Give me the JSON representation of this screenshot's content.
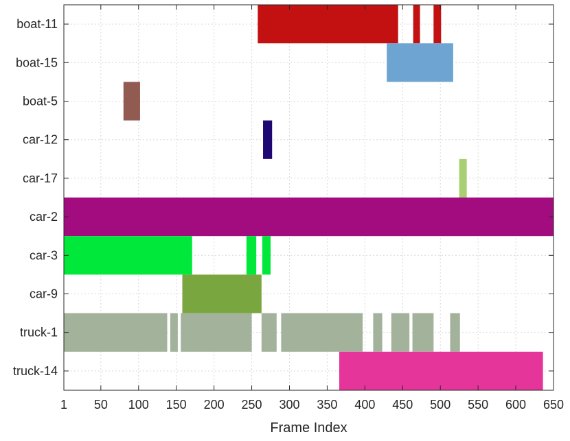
{
  "chart_data": {
    "type": "bar",
    "orientation": "horizontal-timeline",
    "xlabel": "Frame Index",
    "ylabel": "",
    "title": "",
    "xlim": [
      1,
      650
    ],
    "x_ticks": [
      "1",
      "50",
      "100",
      "150",
      "200",
      "250",
      "300",
      "350",
      "400",
      "450",
      "500",
      "550",
      "600",
      "650"
    ],
    "grid": true,
    "categories": [
      "boat-11",
      "boat-15",
      "boat-5",
      "car-12",
      "car-17",
      "car-2",
      "car-3",
      "car-9",
      "truck-1",
      "truck-14"
    ],
    "series": [
      {
        "category": "boat-11",
        "color": "#c31011",
        "segments": [
          [
            258,
            444
          ],
          [
            464,
            473
          ],
          [
            491,
            501
          ]
        ]
      },
      {
        "category": "boat-15",
        "color": "#6ea4d1",
        "segments": [
          [
            429,
            517
          ]
        ]
      },
      {
        "category": "boat-5",
        "color": "#925b51",
        "segments": [
          [
            80,
            102
          ]
        ]
      },
      {
        "category": "car-12",
        "color": "#1e0673",
        "segments": [
          [
            265,
            277
          ]
        ]
      },
      {
        "category": "car-17",
        "color": "#a8cf72",
        "segments": [
          [
            525,
            535
          ]
        ]
      },
      {
        "category": "car-2",
        "color": "#a30c7e",
        "segments": [
          [
            1,
            650
          ]
        ]
      },
      {
        "category": "car-3",
        "color": "#00e93b",
        "segments": [
          [
            1,
            171
          ],
          [
            243,
            256
          ],
          [
            264,
            275
          ]
        ]
      },
      {
        "category": "car-9",
        "color": "#7aa640",
        "segments": [
          [
            158,
            263
          ]
        ]
      },
      {
        "category": "truck-1",
        "color": "#a2b29b",
        "segments": [
          [
            1,
            138
          ],
          [
            142,
            152
          ],
          [
            156,
            250
          ],
          [
            263,
            283
          ],
          [
            289,
            397
          ],
          [
            411,
            423
          ],
          [
            435,
            459
          ],
          [
            463,
            491
          ],
          [
            513,
            526
          ]
        ]
      },
      {
        "category": "truck-14",
        "color": "#e5359a",
        "segments": [
          [
            366,
            636
          ]
        ]
      }
    ]
  }
}
